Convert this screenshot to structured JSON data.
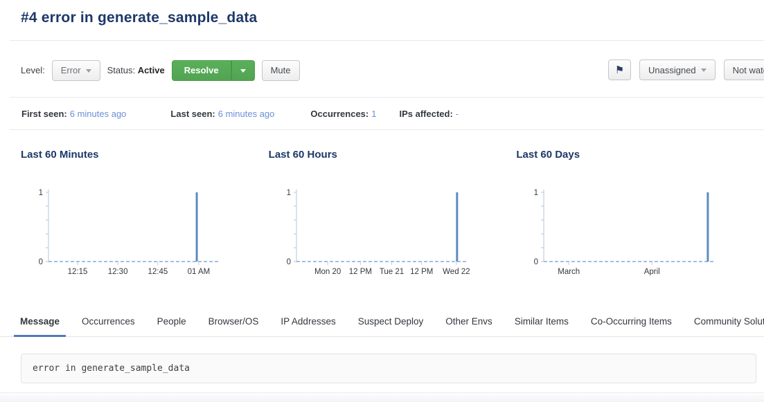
{
  "header": {
    "title": "#4 error in generate_sample_data"
  },
  "toolbar": {
    "level_label": "Level:",
    "level_value": "Error",
    "status_label": "Status:",
    "status_value": "Active",
    "resolve_label": "Resolve",
    "mute_label": "Mute",
    "assignee_label": "Unassigned",
    "watch_label": "Not watching",
    "icons": {
      "flag": "⚑"
    }
  },
  "meta": {
    "items": [
      {
        "label": "First seen:",
        "value": "6 minutes ago"
      },
      {
        "label": "Last seen:",
        "value": "6 minutes ago"
      },
      {
        "label": "Occurrences:",
        "value": "1"
      },
      {
        "label": "IPs affected:",
        "value": "-"
      }
    ]
  },
  "chart_data": [
    {
      "type": "bar",
      "title": "Last 60 Minutes",
      "ylim": [
        0,
        1
      ],
      "y_ticks": [
        0,
        1
      ],
      "grid": false,
      "baseline_style": "dashed",
      "x_tick_labels": [
        "12:15",
        "12:30",
        "12:45",
        "01 AM"
      ],
      "x_tick_positions": [
        0.175,
        0.417,
        0.658,
        0.904
      ],
      "bars": [
        {
          "position": 0.892,
          "value": 1,
          "label": "01 AM"
        }
      ]
    },
    {
      "type": "bar",
      "title": "Last 60 Hours",
      "ylim": [
        0,
        1
      ],
      "y_ticks": [
        0,
        1
      ],
      "grid": false,
      "baseline_style": "dashed",
      "x_tick_labels": [
        "Mon 20",
        "12 PM",
        "Tue 21",
        "12 PM",
        "Wed 22"
      ],
      "x_tick_positions": [
        0.188,
        0.385,
        0.573,
        0.753,
        0.962
      ],
      "bars": [
        {
          "position": 0.966,
          "value": 1,
          "label": "Wed 22"
        }
      ]
    },
    {
      "type": "bar",
      "title": "Last 60 Days",
      "ylim": [
        0,
        1
      ],
      "y_ticks": [
        0,
        1
      ],
      "grid": false,
      "baseline_style": "dashed",
      "x_tick_labels": [
        "March",
        "April"
      ],
      "x_tick_positions": [
        0.151,
        0.651
      ],
      "bars": [
        {
          "position": 0.987,
          "value": 1,
          "label": "April"
        }
      ]
    }
  ],
  "tabs": {
    "active_index": 0,
    "items": [
      "Message",
      "Occurrences",
      "People",
      "Browser/OS",
      "IP Addresses",
      "Suspect Deploy",
      "Other Envs",
      "Similar Items",
      "Co-Occurring Items",
      "Community Solutions"
    ]
  },
  "message": {
    "text": "error in generate_sample_data"
  },
  "colors": {
    "title_navy": "#1d3867",
    "link_blue": "#6c8fd6",
    "bar_blue": "#5b8cbf",
    "axis_blue": "#b3c4dc",
    "baseline_dashed_blue": "#84aada",
    "resolve_green": "#57a957",
    "tab_underline_blue": "#4d7cb8"
  }
}
